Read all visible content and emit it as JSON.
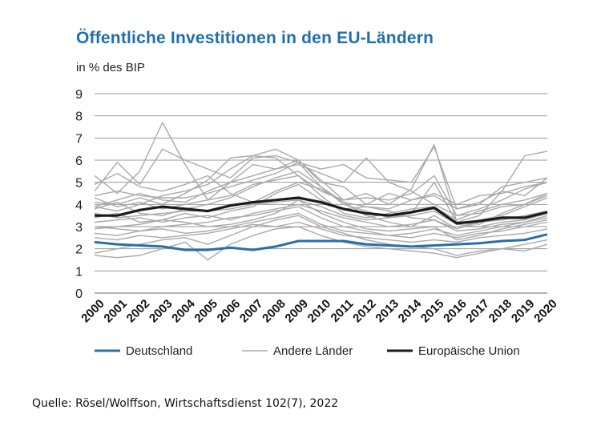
{
  "title": "Öffentliche Investitionen in den EU-Ländern",
  "subtitle": "in % des BIP",
  "source": "Quelle: Rösel/Wolffson, Wirtschaftsdienst 102(7), 2022",
  "colors": {
    "deutschland": "#2a6fa8",
    "andere": "#a9a9a9",
    "eu": "#1a1a1a",
    "grid": "#9a9a9a",
    "title": "#1f6fae"
  },
  "chart_data": {
    "type": "line",
    "title": "Öffentliche Investitionen in den EU-Ländern",
    "ylabel": "in % des BIP",
    "xlabel": "",
    "ylim": [
      0,
      9
    ],
    "yticks": [
      0,
      1,
      2,
      3,
      4,
      5,
      6,
      7,
      8,
      9
    ],
    "grid": true,
    "legend_position": "bottom",
    "x": [
      "2000",
      "2001",
      "2002",
      "2003",
      "2004",
      "2005",
      "2006",
      "2007",
      "2008",
      "2009",
      "2010",
      "2011",
      "2012",
      "2013",
      "2014",
      "2015",
      "2016",
      "2017",
      "2018",
      "2019",
      "2020"
    ],
    "series": [
      {
        "name": "Deutschland",
        "role": "highlight",
        "values": [
          2.3,
          2.2,
          2.15,
          2.1,
          1.95,
          1.95,
          2.05,
          1.95,
          2.1,
          2.35,
          2.35,
          2.35,
          2.2,
          2.15,
          2.1,
          2.15,
          2.2,
          2.25,
          2.35,
          2.4,
          2.65
        ]
      },
      {
        "name": "Europäische Union",
        "role": "highlight",
        "values": [
          3.5,
          3.5,
          3.75,
          3.9,
          3.8,
          3.7,
          3.95,
          4.1,
          4.2,
          4.3,
          4.1,
          3.8,
          3.6,
          3.5,
          3.65,
          3.85,
          3.15,
          3.25,
          3.4,
          3.4,
          3.65
        ]
      }
    ],
    "other_countries_label": "Andere Länder",
    "other_countries": [
      [
        5.3,
        4.5,
        5.5,
        7.7,
        5.8,
        4.2,
        5.0,
        5.8,
        5.6,
        6.0,
        5.1,
        4.2,
        4.5,
        4.0,
        4.7,
        6.7,
        3.2,
        3.5,
        4.6,
        4.4,
        5.2
      ],
      [
        4.6,
        5.9,
        4.9,
        6.5,
        6.0,
        5.6,
        5.2,
        6.1,
        6.2,
        5.9,
        4.8,
        4.0,
        3.7,
        3.4,
        3.6,
        5.0,
        3.2,
        3.1,
        3.6,
        4.0,
        4.5
      ],
      [
        4.1,
        4.0,
        4.3,
        4.0,
        4.5,
        5.1,
        6.1,
        6.2,
        6.5,
        6.0,
        5.0,
        4.8,
        4.0,
        4.5,
        4.2,
        4.4,
        3.8,
        4.0,
        4.8,
        5.0,
        5.2
      ],
      [
        3.9,
        4.2,
        4.5,
        4.2,
        4.1,
        4.6,
        5.0,
        5.3,
        5.6,
        5.8,
        5.4,
        5.0,
        6.1,
        5.0,
        4.6,
        4.0,
        3.5,
        3.8,
        4.2,
        4.7,
        5.0
      ],
      [
        3.8,
        4.1,
        3.6,
        3.5,
        3.8,
        4.0,
        4.3,
        4.8,
        5.2,
        5.5,
        4.8,
        4.1,
        3.5,
        3.2,
        3.0,
        3.5,
        2.9,
        3.3,
        3.5,
        3.9,
        4.3
      ],
      [
        3.6,
        3.4,
        3.5,
        3.6,
        3.7,
        3.7,
        3.8,
        4.0,
        4.1,
        4.2,
        3.9,
        3.5,
        3.3,
        3.4,
        3.5,
        3.7,
        3.1,
        3.0,
        3.2,
        3.3,
        3.6
      ],
      [
        3.2,
        3.3,
        3.4,
        3.2,
        3.4,
        3.5,
        3.3,
        3.6,
        3.8,
        4.0,
        3.7,
        3.4,
        3.2,
        3.0,
        3.1,
        3.3,
        2.8,
        2.9,
        3.1,
        3.2,
        3.5
      ],
      [
        3.0,
        2.9,
        2.8,
        3.0,
        3.1,
        3.2,
        3.4,
        3.5,
        3.7,
        3.9,
        3.4,
        3.0,
        2.8,
        2.6,
        2.7,
        2.9,
        2.6,
        2.8,
        3.0,
        3.2,
        3.4
      ],
      [
        2.7,
        2.6,
        2.8,
        2.9,
        2.7,
        2.8,
        3.0,
        3.2,
        3.4,
        3.6,
        3.1,
        2.8,
        2.7,
        2.6,
        2.5,
        2.7,
        2.5,
        2.7,
        2.8,
        3.0,
        3.2
      ],
      [
        2.5,
        2.4,
        2.6,
        2.5,
        2.6,
        2.7,
        2.9,
        3.1,
        3.0,
        3.2,
        2.9,
        2.6,
        2.5,
        2.4,
        2.3,
        2.4,
        2.3,
        2.5,
        2.6,
        2.7,
        2.9
      ],
      [
        1.8,
        2.0,
        2.2,
        2.4,
        2.5,
        2.2,
        2.6,
        3.0,
        3.3,
        3.5,
        3.0,
        2.7,
        2.4,
        2.2,
        2.1,
        2.0,
        1.7,
        1.9,
        2.0,
        2.2,
        2.4
      ],
      [
        1.7,
        1.6,
        1.7,
        2.0,
        2.3,
        1.5,
        2.2,
        2.6,
        2.9,
        3.0,
        2.6,
        2.3,
        2.1,
        2.0,
        1.9,
        1.8,
        1.6,
        1.8,
        2.0,
        1.9,
        2.2
      ],
      [
        4.9,
        5.4,
        4.8,
        4.6,
        4.9,
        5.3,
        4.5,
        4.1,
        4.6,
        5.0,
        4.7,
        4.1,
        3.9,
        3.8,
        4.2,
        4.5,
        4.0,
        4.4,
        4.5,
        4.8,
        5.0
      ],
      [
        4.3,
        3.9,
        4.1,
        3.8,
        4.0,
        4.2,
        4.4,
        4.9,
        5.1,
        5.3,
        4.4,
        3.6,
        3.4,
        3.6,
        3.8,
        3.9,
        3.3,
        3.7,
        4.0,
        4.2,
        4.5
      ],
      [
        3.4,
        3.6,
        3.2,
        3.3,
        3.6,
        3.4,
        3.7,
        3.9,
        4.5,
        4.9,
        4.2,
        3.8,
        3.9,
        3.7,
        3.4,
        3.3,
        2.9,
        3.2,
        3.3,
        3.5,
        3.7
      ],
      [
        3.9,
        3.7,
        4.0,
        4.4,
        4.6,
        4.9,
        5.6,
        6.2,
        6.1,
        5.3,
        4.6,
        4.2,
        4.3,
        4.2,
        4.5,
        5.3,
        3.5,
        3.6,
        3.9,
        4.0,
        4.4
      ],
      [
        2.9,
        3.0,
        3.1,
        3.3,
        3.2,
        3.0,
        3.1,
        3.3,
        3.6,
        4.2,
        3.6,
        3.2,
        2.9,
        2.8,
        2.9,
        3.0,
        2.4,
        2.6,
        2.9,
        3.1,
        3.3
      ],
      [
        4.4,
        4.6,
        4.4,
        4.3,
        4.3,
        4.5,
        4.8,
        5.1,
        5.4,
        5.9,
        5.6,
        5.8,
        5.2,
        5.1,
        5.0,
        6.6,
        3.8,
        4.1,
        4.6,
        6.2,
        6.4
      ]
    ]
  },
  "legend": [
    {
      "key": "deutschland",
      "label": "Deutschland"
    },
    {
      "key": "andere",
      "label": "Andere Länder"
    },
    {
      "key": "eu",
      "label": "Europäische Union"
    }
  ]
}
